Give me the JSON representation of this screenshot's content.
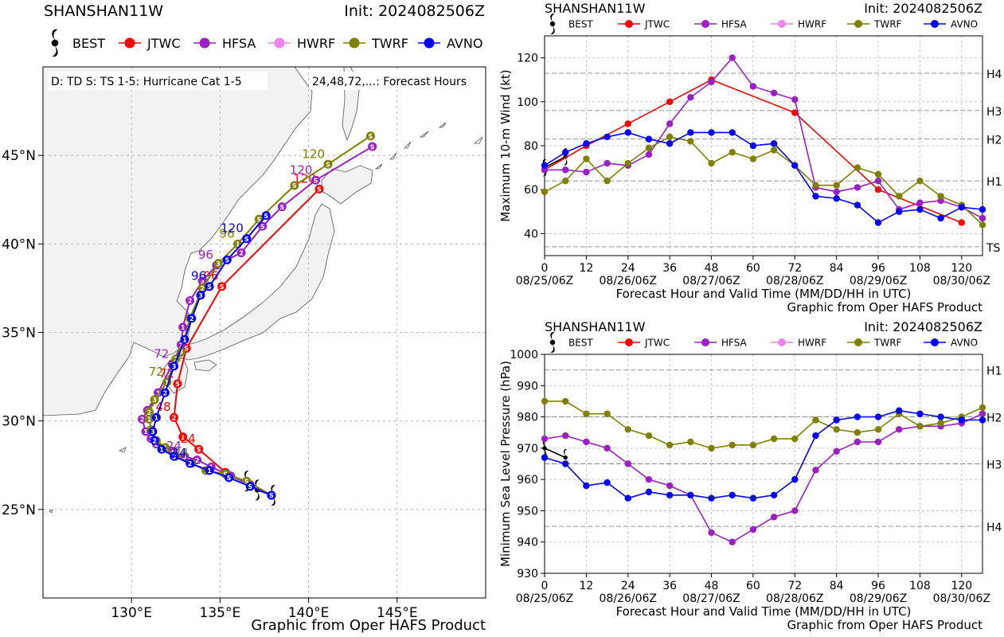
{
  "colors": {
    "BEST": "#000000",
    "JTWC": "#ff0000",
    "HFSA": "#9b1fc4",
    "HWRF": "#ee82ee",
    "TWRF": "#808000",
    "AVNO": "#0000ff"
  },
  "legend": [
    "BEST",
    "JTWC",
    "HFSA",
    "HWRF",
    "TWRF",
    "AVNO"
  ],
  "map": {
    "storm": "SHANSHAN11W",
    "init": "Init: 2024082506Z",
    "key_text": "D: TD  S: TS  1-5: Hurricane Cat 1-5",
    "hours_text": "24,48,72,...: Forecast Hours",
    "credit": "Graphic from Oper HAFS Product",
    "lat_ticks": [
      "25°N",
      "30°N",
      "35°N",
      "40°N",
      "45°N"
    ],
    "lon_ticks": [
      "130°E",
      "135°E",
      "140°E",
      "145°E"
    ]
  },
  "chart_data": [
    {
      "type": "line",
      "id": "wind",
      "title_left": "SHANSHAN11W",
      "title_right": "Init: 2024082506Z",
      "ylabel": "Maximum 10-m Wind (kt)",
      "xlabel": "Forecast Hour and Valid Time (MM/DD/HH in UTC)",
      "credit": "Graphic from Oper HAFS Product",
      "xlim": [
        0,
        126
      ],
      "ylim": [
        30,
        130
      ],
      "yticks": [
        "40",
        "60",
        "80",
        "100",
        "120"
      ],
      "xticks": [
        "0",
        "12",
        "24",
        "36",
        "48",
        "60",
        "72",
        "84",
        "96",
        "108",
        "120"
      ],
      "date_labels": [
        "08/25/06Z",
        "08/26/06Z",
        "08/27/06Z",
        "08/28/06Z",
        "08/29/06Z",
        "08/30/06Z"
      ],
      "ref_lines": [
        {
          "label": "TS",
          "value": 34
        },
        {
          "label": "H1",
          "value": 64
        },
        {
          "label": "H2",
          "value": 83
        },
        {
          "label": "H3",
          "value": 96
        },
        {
          "label": "H4",
          "value": 113
        }
      ],
      "grid": true,
      "series": [
        {
          "name": "BEST",
          "x": [
            0,
            6
          ],
          "y": [
            70,
            75
          ]
        },
        {
          "name": "JTWC",
          "x": [
            0,
            12,
            24,
            36,
            48,
            72,
            96,
            120
          ],
          "y": [
            69,
            80,
            90,
            100,
            110,
            95,
            60,
            45
          ]
        },
        {
          "name": "HFSA",
          "x": [
            0,
            6,
            12,
            18,
            24,
            30,
            36,
            42,
            48,
            54,
            60,
            66,
            72,
            78,
            84,
            90,
            96,
            102,
            108,
            114,
            120,
            126
          ],
          "y": [
            69,
            69,
            68,
            72,
            71,
            76,
            90,
            102,
            109,
            120,
            107,
            104,
            101,
            61,
            59,
            61,
            64,
            51,
            54,
            55,
            52,
            47
          ]
        },
        {
          "name": "TWRF",
          "x": [
            0,
            6,
            12,
            18,
            24,
            30,
            36,
            42,
            48,
            54,
            60,
            66,
            72,
            78,
            84,
            90,
            96,
            102,
            108,
            114,
            120,
            126
          ],
          "y": [
            59,
            64,
            74,
            64,
            72,
            79,
            84,
            82,
            72,
            77,
            74,
            78,
            71,
            62,
            62,
            70,
            67,
            57,
            64,
            57,
            53,
            44
          ]
        },
        {
          "name": "AVNO",
          "x": [
            0,
            6,
            12,
            18,
            24,
            30,
            36,
            42,
            48,
            54,
            60,
            66,
            72,
            78,
            84,
            90,
            96,
            102,
            108,
            114,
            120,
            126
          ],
          "y": [
            71,
            77,
            81,
            84,
            86,
            83,
            81,
            86,
            86,
            86,
            80,
            81,
            71,
            57,
            56,
            53,
            45,
            50,
            51,
            47,
            52,
            51
          ]
        }
      ]
    },
    {
      "type": "line",
      "id": "pressure",
      "title_left": "SHANSHAN11W",
      "title_right": "Init: 2024082506Z",
      "ylabel": "Minimum Sea Level Pressure (hPa)",
      "xlabel": "Forecast Hour and Valid Time (MM/DD/HH in UTC)",
      "credit": "Graphic from Oper HAFS Product",
      "xlim": [
        0,
        126
      ],
      "ylim": [
        930,
        1000
      ],
      "yticks": [
        "930",
        "940",
        "950",
        "960",
        "970",
        "980",
        "990",
        "1000"
      ],
      "xticks": [
        "0",
        "12",
        "24",
        "36",
        "48",
        "60",
        "72",
        "84",
        "96",
        "108",
        "120"
      ],
      "date_labels": [
        "08/25/06Z",
        "08/26/06Z",
        "08/27/06Z",
        "08/28/06Z",
        "08/29/06Z",
        "08/30/06Z"
      ],
      "ref_lines": [
        {
          "label": "H1",
          "value": 995
        },
        {
          "label": "H2",
          "value": 980
        },
        {
          "label": "H3",
          "value": 965
        },
        {
          "label": "H4",
          "value": 945
        }
      ],
      "grid": true,
      "series": [
        {
          "name": "BEST",
          "x": [
            0,
            6
          ],
          "y": [
            970,
            967
          ]
        },
        {
          "name": "HFSA",
          "x": [
            0,
            6,
            12,
            18,
            24,
            30,
            36,
            42,
            48,
            54,
            60,
            66,
            72,
            78,
            84,
            90,
            96,
            102,
            108,
            114,
            120,
            126
          ],
          "y": [
            973,
            974,
            972,
            970,
            965,
            960,
            958,
            955,
            943,
            940,
            944,
            948,
            950,
            963,
            969,
            972,
            972,
            976,
            977,
            977,
            978,
            981
          ]
        },
        {
          "name": "TWRF",
          "x": [
            0,
            6,
            12,
            18,
            24,
            30,
            36,
            42,
            48,
            54,
            60,
            66,
            72,
            78,
            84,
            90,
            96,
            102,
            108,
            114,
            120,
            126
          ],
          "y": [
            985,
            985,
            981,
            981,
            976,
            974,
            971,
            972,
            970,
            971,
            971,
            973,
            973,
            979,
            976,
            975,
            976,
            981,
            977,
            978,
            980,
            983
          ]
        },
        {
          "name": "AVNO",
          "x": [
            0,
            6,
            12,
            18,
            24,
            30,
            36,
            42,
            48,
            54,
            60,
            66,
            72,
            78,
            84,
            90,
            96,
            102,
            108,
            114,
            120,
            126
          ],
          "y": [
            967,
            965,
            958,
            959,
            954,
            956,
            955,
            955,
            954,
            955,
            954,
            955,
            960,
            974,
            979,
            980,
            980,
            982,
            981,
            980,
            979,
            979
          ]
        }
      ]
    },
    {
      "type": "scatter",
      "id": "track",
      "xlabel": "",
      "ylabel": "",
      "xlim": [
        125,
        150
      ],
      "ylim": [
        20,
        50
      ],
      "series": [
        {
          "name": "BEST",
          "lon": [
            138.0,
            137.1,
            136.5
          ],
          "lat": [
            25.8,
            26.1,
            26.6
          ]
        },
        {
          "name": "JTWC",
          "lon": [
            137.9,
            135.3,
            133.8,
            132.9,
            132.4,
            132.6,
            133.1,
            135.1,
            140.6
          ],
          "lat": [
            25.8,
            27.1,
            28.4,
            29.1,
            30.2,
            32.1,
            34.1,
            37.6,
            43.1
          ],
          "labels": [
            {
              "i": 2,
              "text": "24"
            },
            {
              "i": 4,
              "text": "48"
            },
            {
              "i": 5,
              "text": "72"
            },
            {
              "i": 7,
              "text": "96"
            },
            {
              "i": 8,
              "text": "120"
            }
          ]
        },
        {
          "name": "HFSA",
          "lon": [
            137.9,
            136.7,
            135.6,
            134.5,
            133.7,
            133.0,
            132.3,
            131.4,
            131.1,
            130.8,
            130.6,
            130.9,
            131.5,
            132.3,
            132.8,
            132.9,
            133.3,
            134.0,
            134.8,
            136.2,
            137.4,
            138.5,
            140.4,
            143.6
          ],
          "lat": [
            25.8,
            26.4,
            26.9,
            27.4,
            27.8,
            28.0,
            28.3,
            28.7,
            29.0,
            29.4,
            30.1,
            30.6,
            31.6,
            33.2,
            34.3,
            35.3,
            36.8,
            37.9,
            38.8,
            39.5,
            41.0,
            42.1,
            43.6,
            45.5
          ],
          "labels": [
            {
              "i": 5,
              "text": "24"
            },
            {
              "i": 13,
              "text": "72"
            },
            {
              "i": 18,
              "text": "96"
            },
            {
              "i": 22,
              "text": "120"
            }
          ]
        },
        {
          "name": "TWRF",
          "lon": [
            137.9,
            136.5,
            135.3,
            134.2,
            133.4,
            132.5,
            131.9,
            131.4,
            131.1,
            131.0,
            131.0,
            131.3,
            132.0,
            132.5,
            132.8,
            133.3,
            134.0,
            134.9,
            136.0,
            137.2,
            139.2,
            141.1,
            143.5
          ],
          "lat": [
            25.8,
            26.6,
            27.0,
            27.2,
            27.6,
            28.0,
            28.5,
            28.9,
            29.5,
            30.1,
            30.5,
            31.2,
            32.2,
            33.5,
            33.9,
            35.8,
            37.5,
            38.9,
            40.0,
            41.4,
            43.3,
            44.5,
            46.1
          ],
          "labels": [
            {
              "i": 4,
              "text": "24"
            },
            {
              "i": 12,
              "text": "72"
            },
            {
              "i": 18,
              "text": "96"
            },
            {
              "i": 21,
              "text": "120"
            }
          ]
        },
        {
          "name": "AVNO",
          "lon": [
            137.9,
            136.7,
            135.5,
            134.4,
            133.3,
            132.4,
            131.7,
            131.3,
            131.2,
            131.4,
            131.9,
            132.4,
            133.0,
            133.4,
            133.9,
            134.4,
            135.4,
            136.5,
            137.6
          ],
          "lat": [
            25.8,
            26.3,
            26.8,
            27.2,
            27.6,
            28.0,
            28.4,
            28.9,
            29.4,
            30.2,
            31.6,
            33.1,
            34.6,
            35.8,
            37.1,
            37.6,
            39.1,
            40.3,
            41.6
          ],
          "labels": [
            {
              "i": 4,
              "text": "24"
            },
            {
              "i": 15,
              "text": "96"
            },
            {
              "i": 17,
              "text": "120"
            }
          ]
        }
      ]
    }
  ]
}
